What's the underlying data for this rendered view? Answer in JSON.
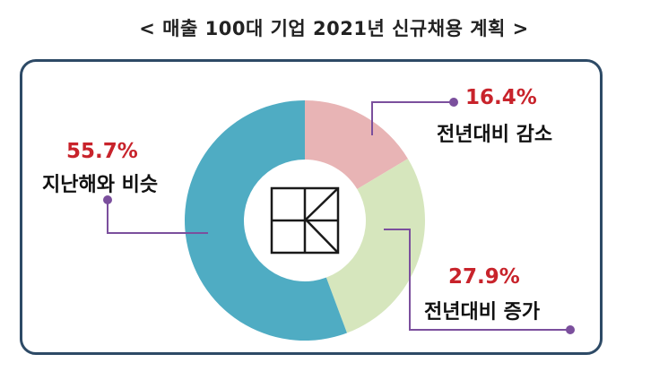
{
  "title": "< 매출 100대 기업 2021년 신규채용 계획 >",
  "chart_data": {
    "type": "pie",
    "subtype": "donut",
    "title": "< 매출 100대 기업 2021년 신규채용 계획 >",
    "categories": [
      "전년대비 감소",
      "전년대비 증가",
      "지난해와 비슷"
    ],
    "values": [
      16.4,
      27.9,
      55.7
    ],
    "value_labels": [
      "16.4%",
      "27.9%",
      "55.7%"
    ],
    "colors": [
      "#e8b4b5",
      "#d6e6bd",
      "#4facc3"
    ],
    "legend": "none"
  },
  "colors": {
    "percent_text": "#c8232b",
    "leader_line": "#7b4f9d",
    "frame_border": "#2d4a66"
  },
  "center_logo": "kcci-logo"
}
